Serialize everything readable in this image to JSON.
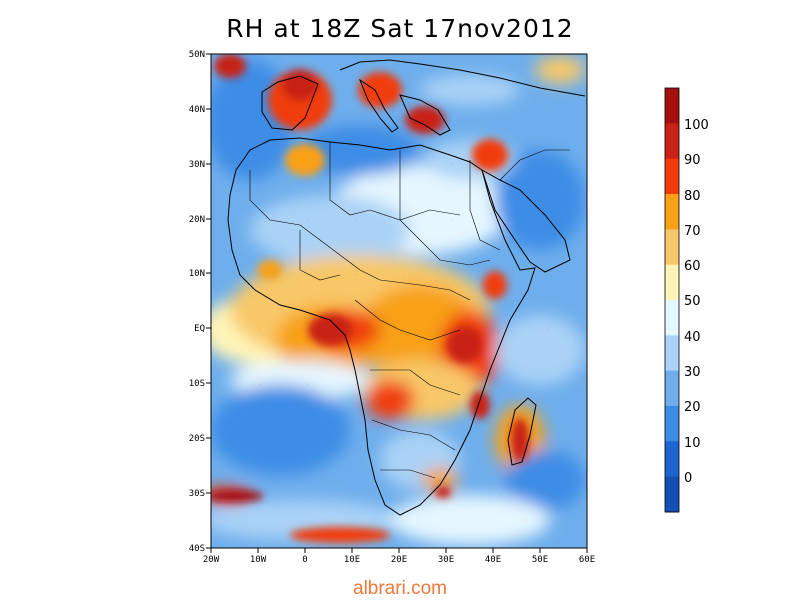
{
  "title": "RH at 18Z Sat 17nov2012",
  "watermark": "albrari.com",
  "map": {
    "variable": "RH",
    "lat_labels": [
      "50N",
      "40N",
      "30N",
      "20N",
      "10N",
      "EQ",
      "10S",
      "20S",
      "30S",
      "40S"
    ],
    "lon_labels": [
      "20W",
      "10W",
      "0",
      "10E",
      "20E",
      "30E",
      "40E",
      "50E",
      "60E"
    ]
  },
  "colorbar": {
    "levels": [
      "100",
      "90",
      "80",
      "70",
      "60",
      "50",
      "40",
      "30",
      "20",
      "10",
      "0"
    ],
    "colors": [
      "#a50f0f",
      "#c82314",
      "#f03c0a",
      "#f8a018",
      "#f8c868",
      "#fff4b8",
      "#e6f6ff",
      "#aad2f6",
      "#6eaeec",
      "#3c8ce6",
      "#1e64d2",
      "#1450b4"
    ]
  }
}
